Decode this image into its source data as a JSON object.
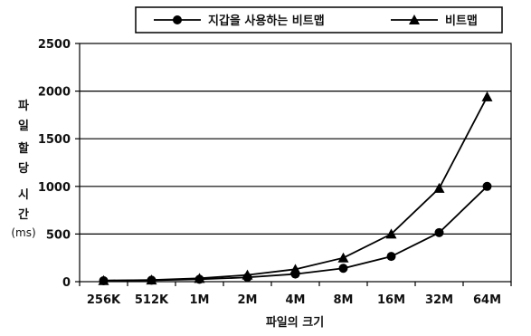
{
  "chart_data": {
    "type": "line",
    "categories": [
      "256K",
      "512K",
      "1M",
      "2M",
      "4M",
      "8M",
      "16M",
      "32M",
      "64M"
    ],
    "series": [
      {
        "name": "지갑을 사용하는 비트맵",
        "marker": "circle",
        "values": [
          10,
          15,
          25,
          45,
          80,
          140,
          265,
          515,
          1000
        ]
      },
      {
        "name": "비트맵",
        "marker": "triangle",
        "values": [
          12,
          18,
          35,
          70,
          130,
          250,
          500,
          980,
          1940
        ]
      }
    ],
    "xlabel": "파일의 크기",
    "ylabel": [
      "파",
      "일",
      "할",
      "당",
      "시",
      "간",
      "(ms)"
    ],
    "yticks": [
      0,
      500,
      1000,
      1500,
      2000,
      2500
    ],
    "ylim": [
      0,
      2500
    ],
    "grid": true,
    "legend": "top-center",
    "colors": {
      "line": "#000000",
      "grid": "#000000"
    }
  }
}
